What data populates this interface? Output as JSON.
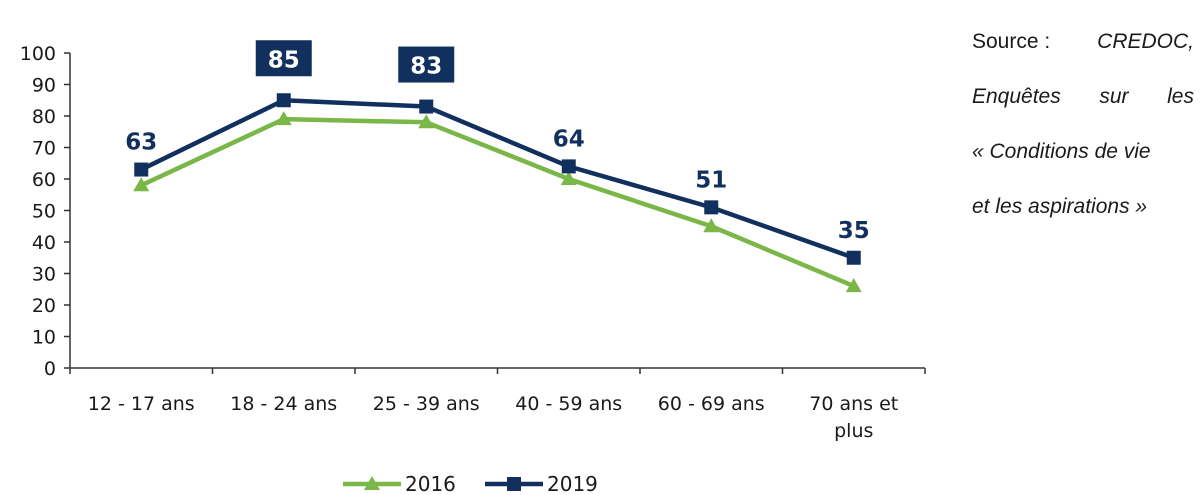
{
  "chart_data": {
    "type": "line",
    "categories": [
      [
        "12 - 17 ans"
      ],
      [
        "18 - 24 ans"
      ],
      [
        "25 - 39 ans"
      ],
      [
        "40 - 59 ans"
      ],
      [
        "60 - 69 ans"
      ],
      [
        "70 ans et",
        "plus"
      ]
    ],
    "series": [
      {
        "name": "2016",
        "values": [
          58,
          79,
          78,
          60,
          45,
          26
        ],
        "color": "#7ab648",
        "marker": "triangle",
        "labels": false
      },
      {
        "name": "2019",
        "values": [
          63,
          85,
          83,
          64,
          51,
          35
        ],
        "color": "#12305e",
        "marker": "square",
        "labels": true
      }
    ],
    "ylim": [
      0,
      100
    ],
    "yticks": [
      0,
      10,
      20,
      30,
      40,
      50,
      60,
      70,
      80,
      90,
      100
    ],
    "grid": false,
    "legend_position": "bottom"
  },
  "source": {
    "line1_label": "Source :",
    "line1_value": "CREDOC,",
    "line2_a": "Enquêtes",
    "line2_b": "sur",
    "line2_c": "les",
    "line3": "« Conditions de vie",
    "line4": "et les aspirations »"
  }
}
